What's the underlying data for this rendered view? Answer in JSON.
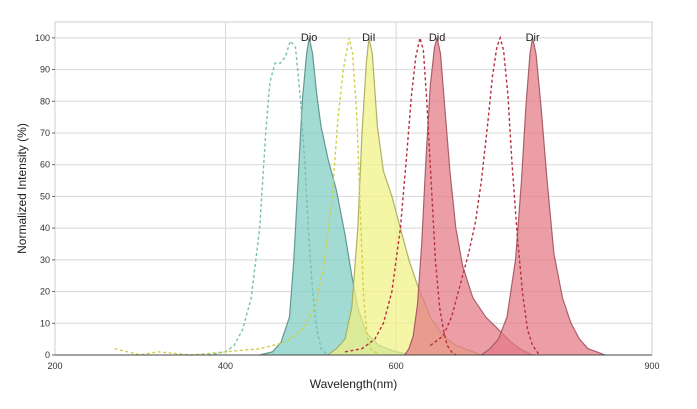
{
  "chart_data": {
    "type": "area",
    "title": "",
    "xlabel": "Wavelength(nm)",
    "ylabel": "Normalized Intensity (%)",
    "xlim": [
      200,
      900
    ],
    "ylim": [
      0,
      105
    ],
    "x_ticks": [
      200,
      400,
      600,
      900
    ],
    "y_ticks": [
      0,
      10,
      20,
      30,
      40,
      50,
      60,
      70,
      80,
      90,
      100
    ],
    "grid": true,
    "legend": "labels above peaks",
    "series": [
      {
        "name": "Dio",
        "color": "#7ecdc2",
        "emission": [
          [
            440,
            0
          ],
          [
            455,
            1
          ],
          [
            465,
            4
          ],
          [
            475,
            12
          ],
          [
            480,
            30
          ],
          [
            485,
            55
          ],
          [
            490,
            80
          ],
          [
            495,
            95
          ],
          [
            498,
            100
          ],
          [
            502,
            95
          ],
          [
            507,
            82
          ],
          [
            512,
            72
          ],
          [
            520,
            62
          ],
          [
            530,
            52
          ],
          [
            540,
            38
          ],
          [
            548,
            25
          ],
          [
            555,
            15
          ],
          [
            565,
            7
          ],
          [
            580,
            3
          ],
          [
            600,
            1
          ],
          [
            620,
            0
          ]
        ],
        "excitation": [
          [
            380,
            0
          ],
          [
            400,
            1
          ],
          [
            410,
            3
          ],
          [
            420,
            8
          ],
          [
            430,
            18
          ],
          [
            440,
            40
          ],
          [
            447,
            70
          ],
          [
            452,
            86
          ],
          [
            458,
            92
          ],
          [
            464,
            92
          ],
          [
            470,
            94
          ],
          [
            476,
            99
          ],
          [
            482,
            97
          ],
          [
            488,
            80
          ],
          [
            493,
            60
          ],
          [
            497,
            40
          ],
          [
            502,
            20
          ],
          [
            507,
            8
          ],
          [
            512,
            2
          ],
          [
            520,
            0
          ]
        ]
      },
      {
        "name": "DiI",
        "color": "#f1f183",
        "emission": [
          [
            520,
            0
          ],
          [
            530,
            2
          ],
          [
            540,
            5
          ],
          [
            548,
            15
          ],
          [
            555,
            40
          ],
          [
            560,
            70
          ],
          [
            565,
            92
          ],
          [
            568,
            100
          ],
          [
            572,
            95
          ],
          [
            578,
            72
          ],
          [
            585,
            58
          ],
          [
            595,
            50
          ],
          [
            605,
            40
          ],
          [
            615,
            30
          ],
          [
            625,
            22
          ],
          [
            640,
            12
          ],
          [
            655,
            6
          ],
          [
            670,
            3
          ],
          [
            690,
            1
          ],
          [
            700,
            0
          ]
        ],
        "excitation": [
          [
            270,
            2
          ],
          [
            285,
            1
          ],
          [
            300,
            0
          ],
          [
            320,
            1
          ],
          [
            360,
            0
          ],
          [
            400,
            1
          ],
          [
            440,
            2
          ],
          [
            470,
            4
          ],
          [
            490,
            8
          ],
          [
            505,
            15
          ],
          [
            515,
            28
          ],
          [
            525,
            50
          ],
          [
            532,
            75
          ],
          [
            538,
            90
          ],
          [
            545,
            100
          ],
          [
            549,
            95
          ],
          [
            554,
            75
          ],
          [
            558,
            45
          ],
          [
            562,
            18
          ],
          [
            566,
            6
          ],
          [
            570,
            2
          ],
          [
            580,
            0
          ]
        ]
      },
      {
        "name": "Did",
        "color": "#e57885",
        "emission": [
          [
            610,
            0
          ],
          [
            615,
            2
          ],
          [
            620,
            6
          ],
          [
            625,
            16
          ],
          [
            630,
            35
          ],
          [
            635,
            62
          ],
          [
            640,
            85
          ],
          [
            645,
            97
          ],
          [
            648,
            100
          ],
          [
            652,
            95
          ],
          [
            657,
            78
          ],
          [
            663,
            58
          ],
          [
            670,
            40
          ],
          [
            678,
            28
          ],
          [
            690,
            18
          ],
          [
            705,
            12
          ],
          [
            720,
            8
          ],
          [
            735,
            4
          ],
          [
            745,
            2
          ],
          [
            760,
            0
          ]
        ],
        "excitation": [
          [
            540,
            1
          ],
          [
            560,
            2
          ],
          [
            575,
            5
          ],
          [
            585,
            10
          ],
          [
            595,
            20
          ],
          [
            605,
            40
          ],
          [
            612,
            62
          ],
          [
            618,
            82
          ],
          [
            623,
            94
          ],
          [
            628,
            100
          ],
          [
            632,
            96
          ],
          [
            636,
            80
          ],
          [
            641,
            55
          ],
          [
            646,
            30
          ],
          [
            651,
            15
          ],
          [
            656,
            7
          ],
          [
            660,
            3
          ],
          [
            665,
            1
          ],
          [
            670,
            0
          ]
        ]
      },
      {
        "name": "Dir",
        "color": "#e57885",
        "emission": [
          [
            700,
            0
          ],
          [
            710,
            2
          ],
          [
            720,
            5
          ],
          [
            730,
            12
          ],
          [
            740,
            30
          ],
          [
            747,
            55
          ],
          [
            752,
            78
          ],
          [
            757,
            95
          ],
          [
            760,
            100
          ],
          [
            764,
            95
          ],
          [
            770,
            78
          ],
          [
            777,
            55
          ],
          [
            785,
            32
          ],
          [
            795,
            18
          ],
          [
            805,
            10
          ],
          [
            815,
            5
          ],
          [
            825,
            2
          ],
          [
            835,
            1
          ],
          [
            845,
            0
          ]
        ],
        "excitation": [
          [
            640,
            3
          ],
          [
            655,
            6
          ],
          [
            665,
            12
          ],
          [
            675,
            22
          ],
          [
            685,
            32
          ],
          [
            693,
            42
          ],
          [
            700,
            55
          ],
          [
            707,
            72
          ],
          [
            713,
            88
          ],
          [
            718,
            97
          ],
          [
            722,
            100
          ],
          [
            726,
            96
          ],
          [
            731,
            82
          ],
          [
            736,
            60
          ],
          [
            742,
            38
          ],
          [
            748,
            20
          ],
          [
            754,
            8
          ],
          [
            760,
            3
          ],
          [
            768,
            0
          ]
        ]
      }
    ]
  }
}
